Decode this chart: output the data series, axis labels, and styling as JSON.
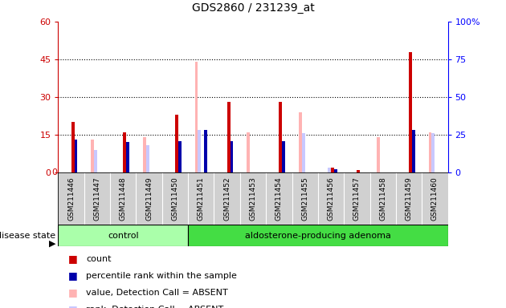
{
  "title": "GDS2860 / 231239_at",
  "categories": [
    "GSM211446",
    "GSM211447",
    "GSM211448",
    "GSM211449",
    "GSM211450",
    "GSM211451",
    "GSM211452",
    "GSM211453",
    "GSM211454",
    "GSM211455",
    "GSM211456",
    "GSM211457",
    "GSM211458",
    "GSM211459",
    "GSM211460"
  ],
  "count": [
    20,
    0,
    16,
    0,
    23,
    0,
    28,
    0,
    28,
    0,
    2,
    1,
    0,
    48,
    0
  ],
  "percentile_rank": [
    22,
    0,
    20,
    0,
    21,
    28,
    21,
    0,
    21,
    0,
    2,
    0,
    0,
    28,
    0
  ],
  "value_absent": [
    0,
    13,
    0,
    14,
    0,
    44,
    0,
    16,
    0,
    24,
    0,
    0,
    14,
    0,
    16
  ],
  "rank_absent": [
    0,
    15,
    0,
    18,
    0,
    28,
    0,
    0,
    0,
    26,
    3,
    0,
    0,
    0,
    26
  ],
  "n_control": 5,
  "n_total": 15,
  "left_ylim": [
    0,
    60
  ],
  "right_ylim": [
    0,
    100
  ],
  "left_yticks": [
    0,
    15,
    30,
    45,
    60
  ],
  "right_yticks": [
    0,
    25,
    50,
    75,
    100
  ],
  "color_count": "#cc0000",
  "color_percentile": "#0000aa",
  "color_value_absent": "#ffb3b3",
  "color_rank_absent": "#c8c8ff",
  "bg_color": "#d0d0d0",
  "control_fill": "#aaffaa",
  "adenoma_fill": "#44dd44",
  "bar_width": 0.12,
  "legend_items": [
    {
      "label": "count",
      "color": "#cc0000"
    },
    {
      "label": "percentile rank within the sample",
      "color": "#0000aa"
    },
    {
      "label": "value, Detection Call = ABSENT",
      "color": "#ffb3b3"
    },
    {
      "label": "rank, Detection Call = ABSENT",
      "color": "#c8c8ff"
    }
  ]
}
